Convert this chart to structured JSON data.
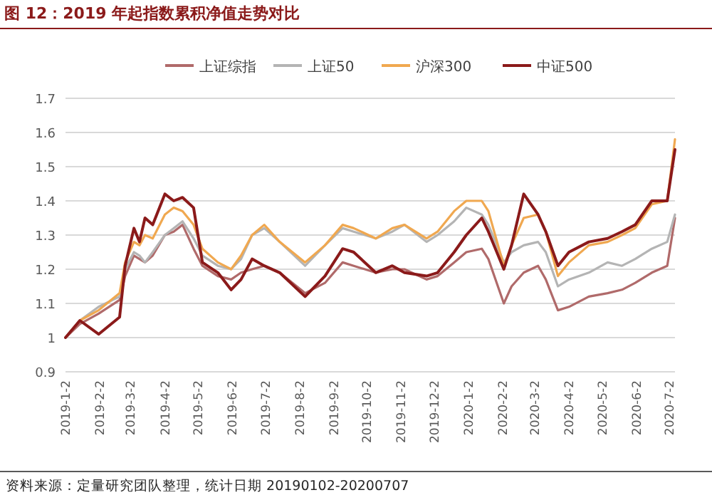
{
  "chart_data": {
    "type": "line",
    "title": "图 12：2019 年起指数累积净值走势对比",
    "x": [
      "2019-01-02",
      "2019-01-15",
      "2019-02-01",
      "2019-02-20",
      "2019-02-25",
      "2019-03-05",
      "2019-03-10",
      "2019-03-15",
      "2019-03-22",
      "2019-04-02",
      "2019-04-10",
      "2019-04-18",
      "2019-04-28",
      "2019-05-06",
      "2019-05-20",
      "2019-06-01",
      "2019-06-10",
      "2019-06-20",
      "2019-07-01",
      "2019-07-15",
      "2019-08-07",
      "2019-08-25",
      "2019-09-10",
      "2019-09-20",
      "2019-10-10",
      "2019-10-25",
      "2019-11-05",
      "2019-11-25",
      "2019-12-05",
      "2019-12-20",
      "2019-12-31",
      "2020-01-14",
      "2020-01-20",
      "2020-02-03",
      "2020-02-10",
      "2020-02-21",
      "2020-03-05",
      "2020-03-12",
      "2020-03-23",
      "2020-04-02",
      "2020-04-20",
      "2020-05-07",
      "2020-05-20",
      "2020-06-01",
      "2020-06-16",
      "2020-06-30",
      "2020-07-07"
    ],
    "series": [
      {
        "name": "上证综指",
        "color": "#b06a6a",
        "values": [
          1.0,
          1.04,
          1.07,
          1.11,
          1.18,
          1.24,
          1.23,
          1.22,
          1.24,
          1.3,
          1.31,
          1.33,
          1.26,
          1.21,
          1.18,
          1.17,
          1.19,
          1.2,
          1.21,
          1.19,
          1.13,
          1.16,
          1.22,
          1.21,
          1.19,
          1.2,
          1.2,
          1.17,
          1.18,
          1.22,
          1.25,
          1.26,
          1.23,
          1.1,
          1.15,
          1.19,
          1.21,
          1.17,
          1.08,
          1.09,
          1.12,
          1.13,
          1.14,
          1.16,
          1.19,
          1.21,
          1.35
        ]
      },
      {
        "name": "上证50",
        "color": "#b4b4b4",
        "values": [
          1.0,
          1.05,
          1.09,
          1.12,
          1.2,
          1.25,
          1.24,
          1.22,
          1.25,
          1.3,
          1.32,
          1.34,
          1.29,
          1.24,
          1.21,
          1.2,
          1.23,
          1.3,
          1.32,
          1.28,
          1.21,
          1.27,
          1.32,
          1.31,
          1.29,
          1.31,
          1.33,
          1.28,
          1.3,
          1.34,
          1.38,
          1.36,
          1.33,
          1.22,
          1.25,
          1.27,
          1.28,
          1.25,
          1.15,
          1.17,
          1.19,
          1.22,
          1.21,
          1.23,
          1.26,
          1.28,
          1.36
        ]
      },
      {
        "name": "沪深300",
        "color": "#f0a850",
        "values": [
          1.0,
          1.05,
          1.08,
          1.13,
          1.22,
          1.28,
          1.27,
          1.3,
          1.29,
          1.36,
          1.38,
          1.37,
          1.33,
          1.26,
          1.22,
          1.2,
          1.24,
          1.3,
          1.33,
          1.28,
          1.22,
          1.27,
          1.33,
          1.32,
          1.29,
          1.32,
          1.33,
          1.29,
          1.31,
          1.37,
          1.4,
          1.4,
          1.37,
          1.21,
          1.27,
          1.35,
          1.36,
          1.31,
          1.18,
          1.22,
          1.27,
          1.28,
          1.3,
          1.32,
          1.39,
          1.4,
          1.58
        ]
      },
      {
        "name": "中证500",
        "color": "#8b1a1a",
        "values": [
          1.0,
          1.05,
          1.01,
          1.06,
          1.21,
          1.32,
          1.28,
          1.35,
          1.33,
          1.42,
          1.4,
          1.41,
          1.38,
          1.22,
          1.19,
          1.14,
          1.17,
          1.23,
          1.21,
          1.19,
          1.12,
          1.18,
          1.26,
          1.25,
          1.19,
          1.21,
          1.19,
          1.18,
          1.19,
          1.25,
          1.3,
          1.35,
          1.31,
          1.2,
          1.27,
          1.42,
          1.36,
          1.31,
          1.21,
          1.25,
          1.28,
          1.29,
          1.31,
          1.33,
          1.4,
          1.4,
          1.55
        ]
      }
    ],
    "xlim": [
      "2019-01-02",
      "2020-07-07"
    ],
    "xticks": [
      {
        "value": "2019-01-02",
        "label": "2019-1-2"
      },
      {
        "value": "2019-02-02",
        "label": "2019-2-2"
      },
      {
        "value": "2019-03-02",
        "label": "2019-3-2"
      },
      {
        "value": "2019-04-02",
        "label": "2019-4-2"
      },
      {
        "value": "2019-05-02",
        "label": "2019-5-2"
      },
      {
        "value": "2019-06-02",
        "label": "2019-6-2"
      },
      {
        "value": "2019-07-02",
        "label": "2019-7-2"
      },
      {
        "value": "2019-08-02",
        "label": "2019-8-2"
      },
      {
        "value": "2019-09-02",
        "label": "2019-9-2"
      },
      {
        "value": "2019-10-02",
        "label": "2019-10-2"
      },
      {
        "value": "2019-11-02",
        "label": "2019-11-2"
      },
      {
        "value": "2019-12-02",
        "label": "2019-12-2"
      },
      {
        "value": "2020-01-02",
        "label": "2020-1-2"
      },
      {
        "value": "2020-02-02",
        "label": "2020-2-2"
      },
      {
        "value": "2020-03-02",
        "label": "2020-3-2"
      },
      {
        "value": "2020-04-02",
        "label": "2020-4-2"
      },
      {
        "value": "2020-05-02",
        "label": "2020-5-2"
      },
      {
        "value": "2020-06-02",
        "label": "2020-6-2"
      },
      {
        "value": "2020-07-02",
        "label": "2020-7-2"
      }
    ],
    "ylim": [
      0.9,
      1.7
    ],
    "yticks": [
      0.9,
      1,
      1.1,
      1.2,
      1.3,
      1.4,
      1.5,
      1.6,
      1.7
    ],
    "grid": "y",
    "legend": "top",
    "annotations": [
      "资料来源：定量研究团队整理，统计日期 20190102-20200707"
    ]
  }
}
